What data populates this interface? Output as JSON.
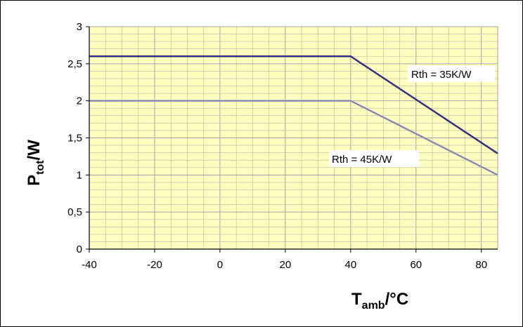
{
  "chart_data": {
    "type": "line",
    "xlabel": {
      "main": "T",
      "sub": "amb",
      "rest": "/°C"
    },
    "ylabel": {
      "main": "P",
      "sub": "tot",
      "rest": "/W"
    },
    "xlim": [
      -40,
      85
    ],
    "ylim": [
      0,
      3
    ],
    "x_ticks": [
      -40,
      -20,
      0,
      20,
      40,
      60,
      80
    ],
    "x_tick_labels": [
      "-40",
      "-20",
      "0",
      "20",
      "40",
      "60",
      "80"
    ],
    "y_ticks": [
      0,
      0.5,
      1,
      1.5,
      2,
      2.5,
      3
    ],
    "y_tick_labels": [
      "0",
      "0,5",
      "1",
      "1,5",
      "2",
      "2,5",
      "3"
    ],
    "grid": true,
    "series": [
      {
        "name": "Rth = 35K/W",
        "x": [
          -40,
          40,
          85
        ],
        "y": [
          2.6,
          2.6,
          1.29
        ]
      },
      {
        "name": "Rth = 45K/W",
        "x": [
          -40,
          40,
          85
        ],
        "y": [
          2.0,
          2.0,
          1.0
        ]
      }
    ]
  },
  "colors": {
    "plot_background": "#ffffc0",
    "grid_major": "#a6a6a6",
    "grid_minor": "#c8c8a8",
    "series_35": "#33337f",
    "series_45": "#7f7f9a"
  }
}
